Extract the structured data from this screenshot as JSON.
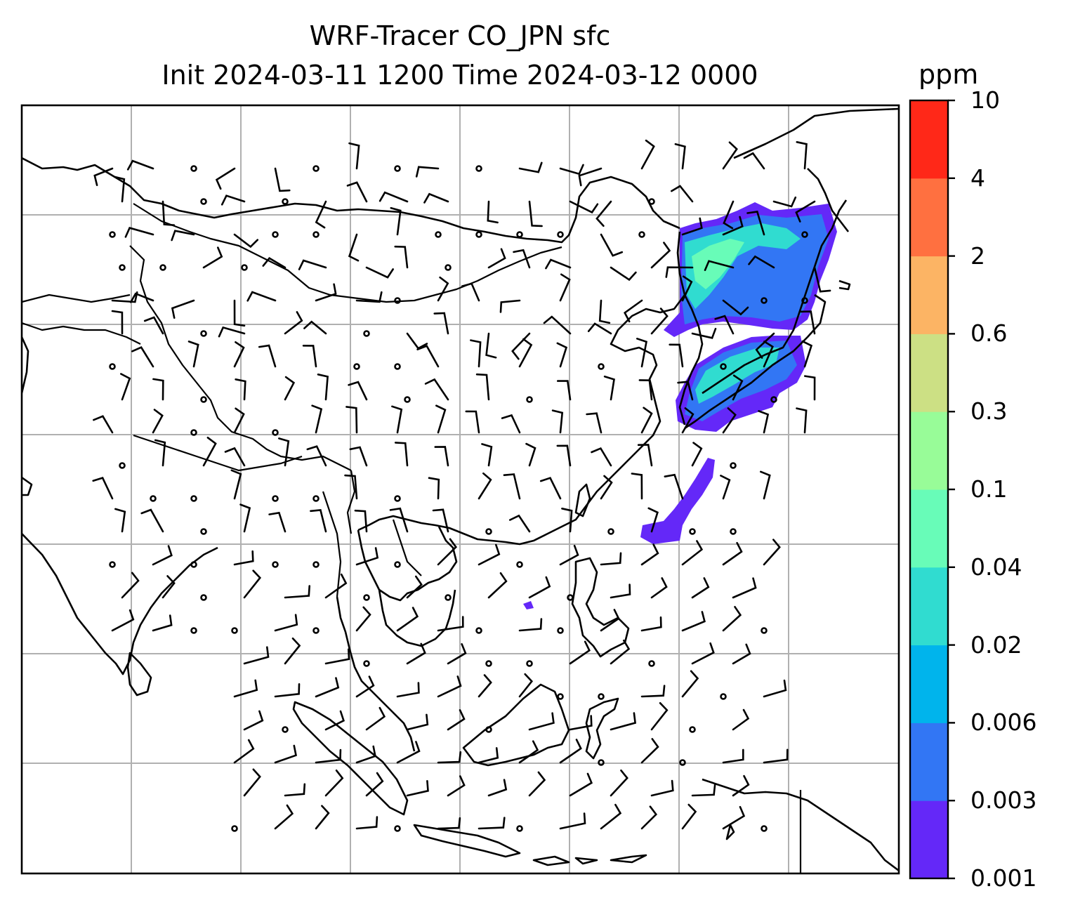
{
  "title": {
    "line1": "WRF-Tracer CO_JPN sfc",
    "line2": "Init 2024-03-11 1200 Time 2024-03-12 0000"
  },
  "colorbar": {
    "unit": "ppm",
    "levels": [
      "0.001",
      "0.003",
      "0.006",
      "0.02",
      "0.04",
      "0.1",
      "0.3",
      "0.6",
      "2",
      "4",
      "10"
    ],
    "colors": [
      "#6428f8",
      "#3276f4",
      "#00b4ec",
      "#30dcd0",
      "#68fcb8",
      "#98fc98",
      "#cce084",
      "#fcb464",
      "#ff7040",
      "#ff2818"
    ]
  },
  "map": {
    "field": "CO_JPN tracer concentration",
    "layers": [
      "coastlines",
      "country-borders",
      "gridlines",
      "wind-barbs",
      "tracer-plume"
    ],
    "plume_colors": {
      "low": "#6428f8",
      "mid": "#3276f4",
      "high": "#30dcd0",
      "peak": "#68fcb8"
    }
  }
}
